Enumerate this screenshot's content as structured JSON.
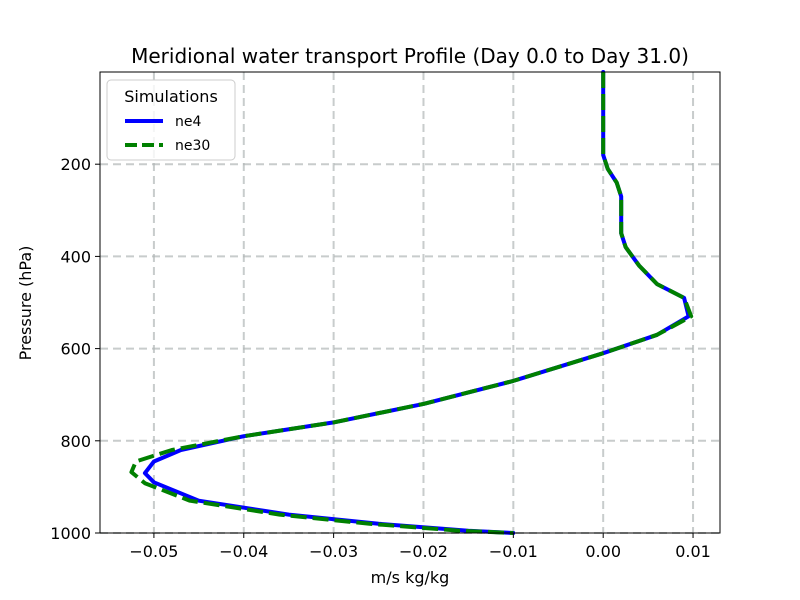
{
  "chart_data": {
    "type": "line",
    "title": "Meridional water transport Profile (Day 0.0 to Day 31.0)",
    "xlabel": "m/s kg/kg",
    "ylabel": "Pressure (hPa)",
    "xlim": [
      -0.056,
      0.013
    ],
    "ylim": [
      1000,
      0
    ],
    "y_inverted": true,
    "grid": true,
    "xticks": [
      -0.05,
      -0.04,
      -0.03,
      -0.02,
      -0.01,
      0.0,
      0.01
    ],
    "xtick_labels": [
      "−0.05",
      "−0.04",
      "−0.03",
      "−0.02",
      "−0.01",
      "0.00",
      "0.01"
    ],
    "yticks": [
      200,
      400,
      600,
      800,
      1000
    ],
    "ytick_labels": [
      "200",
      "400",
      "600",
      "800",
      "1000"
    ],
    "legend": {
      "title": "Simulations",
      "location": "top-left"
    },
    "series": [
      {
        "name": "ne4",
        "color": "#0000ff",
        "style": "solid",
        "x": [
          0.0,
          0.0,
          0.0,
          0.0,
          0.0,
          0.0005,
          0.0015,
          0.002,
          0.002,
          0.002,
          0.0025,
          0.004,
          0.006,
          0.009,
          0.0095,
          0.006,
          0.0,
          -0.01,
          -0.02,
          -0.03,
          -0.04,
          -0.047,
          -0.05,
          -0.051,
          -0.05,
          -0.045,
          -0.035,
          -0.025,
          -0.015,
          -0.01
        ],
        "y": [
          0,
          50,
          100,
          150,
          180,
          210,
          240,
          270,
          300,
          350,
          380,
          420,
          460,
          490,
          530,
          570,
          610,
          670,
          720,
          760,
          790,
          820,
          845,
          870,
          890,
          930,
          960,
          980,
          995,
          1000
        ]
      },
      {
        "name": "ne30",
        "color": "#008000",
        "style": "dashed",
        "x": [
          0.0,
          0.0,
          0.0,
          0.0,
          0.0,
          0.0005,
          0.0015,
          0.002,
          0.002,
          0.002,
          0.0025,
          0.004,
          0.006,
          0.009,
          0.0098,
          0.006,
          0.0,
          -0.01,
          -0.02,
          -0.03,
          -0.04,
          -0.048,
          -0.052,
          -0.0525,
          -0.051,
          -0.046,
          -0.036,
          -0.026,
          -0.016,
          -0.01
        ],
        "y": [
          0,
          50,
          100,
          150,
          180,
          210,
          240,
          270,
          300,
          350,
          380,
          420,
          460,
          490,
          530,
          570,
          610,
          670,
          720,
          760,
          790,
          820,
          845,
          868,
          892,
          930,
          960,
          980,
          995,
          1000
        ]
      }
    ]
  }
}
